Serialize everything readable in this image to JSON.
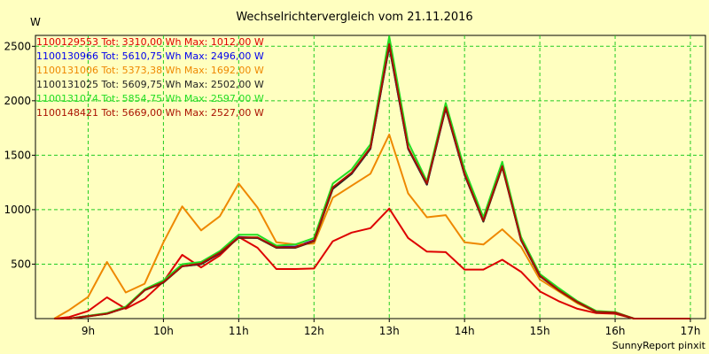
{
  "chart_data": {
    "type": "line",
    "title": "Wechselrichtervergleich vom 21.11.2016",
    "ylabel": "W",
    "xlabel": "",
    "footer": "SunnyReport pinxit",
    "xlim": [
      8.3,
      17.2
    ],
    "ylim": [
      0,
      2600
    ],
    "grid": true,
    "legend_position": "top-left",
    "x_ticks": [
      {
        "value": 9,
        "label": "9h"
      },
      {
        "value": 10,
        "label": "10h"
      },
      {
        "value": 11,
        "label": "11h"
      },
      {
        "value": 12,
        "label": "12h"
      },
      {
        "value": 13,
        "label": "13h"
      },
      {
        "value": 14,
        "label": "14h"
      },
      {
        "value": 15,
        "label": "15h"
      },
      {
        "value": 16,
        "label": "16h"
      },
      {
        "value": 17,
        "label": "17h"
      }
    ],
    "y_ticks": [
      {
        "value": 500,
        "label": "500"
      },
      {
        "value": 1000,
        "label": "1000"
      },
      {
        "value": 1500,
        "label": "1500"
      },
      {
        "value": 2000,
        "label": "2000"
      },
      {
        "value": 2500,
        "label": "2500"
      }
    ],
    "x": [
      8.55,
      8.75,
      9.0,
      9.25,
      9.5,
      9.75,
      10.0,
      10.25,
      10.5,
      10.75,
      11.0,
      11.25,
      11.5,
      11.75,
      12.0,
      12.25,
      12.5,
      12.75,
      13.0,
      13.25,
      13.5,
      13.75,
      14.0,
      14.25,
      14.5,
      14.75,
      15.0,
      15.25,
      15.5,
      15.75,
      16.0,
      16.25,
      16.5,
      17.0
    ],
    "series": [
      {
        "name": "1100129553 Tot: 3310,00 Wh Max: 1012,00 W",
        "color": "#dd0000",
        "values": [
          0,
          15,
          70,
          195,
          90,
          180,
          340,
          585,
          470,
          580,
          750,
          650,
          455,
          455,
          460,
          710,
          790,
          830,
          1010,
          740,
          615,
          610,
          450,
          450,
          540,
          430,
          250,
          160,
          90,
          50,
          45,
          0,
          0,
          0
        ]
      },
      {
        "name": "1100130966 Tot: 5610,75 Wh Max: 2496,00 W",
        "color": "#0000ee",
        "values": [
          0,
          0,
          25,
          45,
          100,
          260,
          340,
          480,
          500,
          600,
          750,
          740,
          660,
          660,
          720,
          1200,
          1330,
          1560,
          2500,
          1560,
          1230,
          1930,
          1320,
          900,
          1400,
          720,
          390,
          260,
          150,
          60,
          55,
          0,
          0,
          0
        ]
      },
      {
        "name": "1100131006 Tot: 5373,38 Wh Max: 1692,00 W",
        "color": "#ee8800",
        "values": [
          0,
          80,
          200,
          520,
          240,
          320,
          700,
          1030,
          810,
          940,
          1240,
          1020,
          700,
          680,
          690,
          1110,
          1220,
          1330,
          1690,
          1150,
          930,
          950,
          700,
          680,
          820,
          660,
          360,
          250,
          140,
          60,
          55,
          0,
          0,
          0
        ]
      },
      {
        "name": "1100131025 Tot: 5609,75 Wh Max: 2502,00 W",
        "color": "#222222",
        "values": [
          0,
          0,
          20,
          45,
          100,
          260,
          330,
          480,
          500,
          600,
          740,
          740,
          650,
          650,
          710,
          1190,
          1330,
          1560,
          2500,
          1560,
          1230,
          1930,
          1320,
          890,
          1390,
          720,
          390,
          260,
          150,
          60,
          55,
          0,
          0,
          0
        ]
      },
      {
        "name": "1100131074 Tot: 5854,75 Wh Max: 2597,00 W",
        "color": "#22dd22",
        "values": [
          0,
          0,
          25,
          50,
          110,
          270,
          350,
          500,
          520,
          620,
          770,
          770,
          670,
          680,
          740,
          1240,
          1370,
          1600,
          2590,
          1620,
          1260,
          1980,
          1370,
          930,
          1440,
          750,
          410,
          280,
          160,
          70,
          60,
          0,
          0,
          0
        ]
      },
      {
        "name": "1100148421 Tot: 5669,00 Wh Max: 2527,00 W",
        "color": "#aa1100",
        "values": [
          0,
          0,
          22,
          45,
          100,
          262,
          335,
          482,
          505,
          605,
          745,
          745,
          655,
          655,
          715,
          1205,
          1340,
          1570,
          2520,
          1570,
          1240,
          1940,
          1330,
          900,
          1400,
          725,
          395,
          262,
          152,
          62,
          56,
          0,
          0,
          0
        ]
      }
    ]
  }
}
